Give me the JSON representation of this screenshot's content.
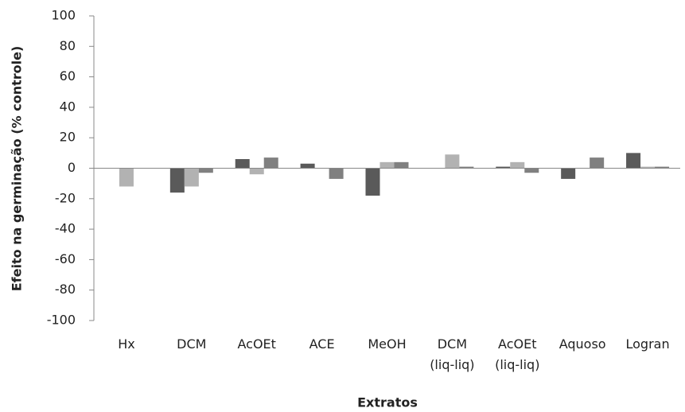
{
  "chart_data": {
    "type": "bar",
    "x_label": "Extratos",
    "y_label": "Efeito na germinação  (% controle)",
    "categories": [
      "Hx",
      "DCM",
      "AcOEt",
      "ACE",
      "MeOH",
      "DCM\n(liq-liq)",
      "AcOEt\n(liq-liq)",
      "Aquoso",
      "Logran"
    ],
    "series": [
      {
        "color": "#5a5a5a",
        "values": [
          0,
          -16,
          6,
          3,
          -18,
          0,
          1,
          -7,
          10
        ]
      },
      {
        "color": "#b2b2b2",
        "values": [
          -12,
          -12,
          -4,
          0,
          4,
          9,
          4,
          0,
          1
        ]
      },
      {
        "color": "#808080",
        "values": [
          0,
          -3,
          7,
          -7,
          4,
          1,
          -3,
          7,
          1
        ]
      }
    ],
    "ylim": [
      -100,
      100
    ],
    "yticks": [
      -100,
      -80,
      -60,
      -40,
      -20,
      0,
      20,
      40,
      60,
      80,
      100
    ],
    "grid": false
  }
}
